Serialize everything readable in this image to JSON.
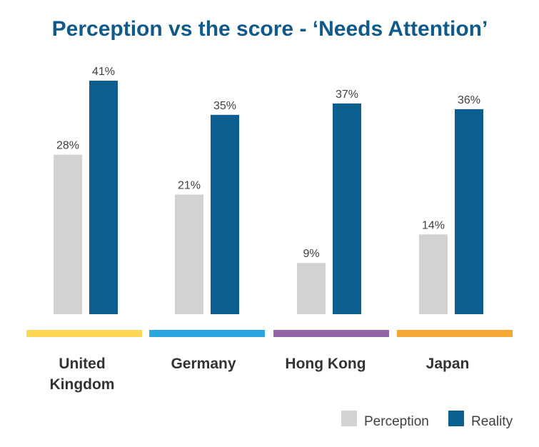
{
  "chart_data": {
    "type": "bar",
    "title": "Perception vs the score - ‘Needs Attention’",
    "categories": [
      {
        "label_lines": [
          "United",
          "Kingdom"
        ],
        "band_color": "#FDD855"
      },
      {
        "label_lines": [
          "Germany"
        ],
        "band_color": "#29A8E0"
      },
      {
        "label_lines": [
          "Hong Kong"
        ],
        "band_color": "#9265A4"
      },
      {
        "label_lines": [
          "Japan"
        ],
        "band_color": "#F5A733"
      }
    ],
    "series": [
      {
        "name": "Perception",
        "color": "#D3D1D1",
        "values": [
          28,
          21,
          9,
          14
        ],
        "labels": [
          "28%",
          "21%",
          "9%",
          "14%"
        ]
      },
      {
        "name": "Reality",
        "color": "#0A5F8F",
        "values": [
          41,
          35,
          37,
          36
        ],
        "labels": [
          "41%",
          "35%",
          "37%",
          "36%"
        ]
      }
    ],
    "title_color": "#0F5A8A",
    "ylim": [
      0,
      41
    ],
    "legend_position": "bottom-right",
    "grid": false
  }
}
